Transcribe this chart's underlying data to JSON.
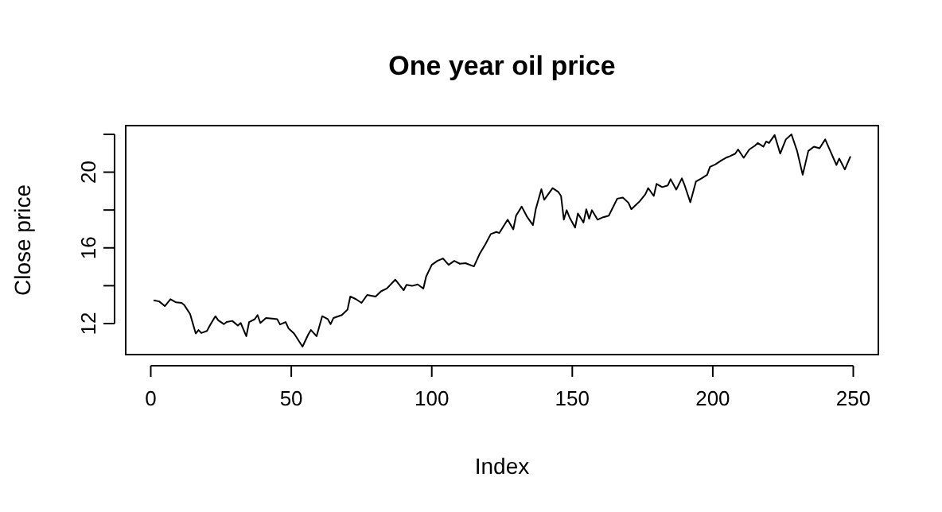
{
  "chart_data": {
    "type": "line",
    "title": "One year oil price",
    "xlabel": "Index",
    "ylabel": "Close price",
    "xlim": [
      -8.92,
      258.92
    ],
    "xticks": [
      0,
      50,
      100,
      150,
      200,
      250
    ],
    "ylim": [
      10.36,
      22.46
    ],
    "yticks": [
      12,
      {
        "value": 14,
        "label": null
      },
      16,
      {
        "value": 18,
        "label": null
      },
      20,
      {
        "value": 22,
        "label": null
      }
    ],
    "grid": false,
    "x": [
      1,
      3,
      5,
      7,
      9,
      11,
      12,
      14,
      16,
      17,
      18,
      20,
      21,
      23,
      24,
      26,
      27,
      29,
      31,
      32,
      34,
      35,
      37,
      38,
      39,
      41,
      44,
      45,
      46,
      48,
      49,
      51,
      54,
      56,
      57,
      59,
      61,
      63,
      64,
      65,
      68,
      70,
      71,
      73,
      75,
      77,
      80,
      82,
      84,
      87,
      90,
      91,
      93,
      95,
      97,
      98,
      100,
      102,
      104,
      106,
      108,
      110,
      112,
      115,
      117,
      119,
      121,
      123,
      124,
      127,
      129,
      130,
      132,
      134,
      136,
      137,
      139,
      140,
      143,
      145,
      146,
      147,
      148,
      149,
      151,
      152,
      154,
      155,
      156,
      157,
      159,
      161,
      163,
      166,
      168,
      170,
      171,
      174,
      176,
      177,
      179,
      180,
      182,
      184,
      185,
      187,
      189,
      190,
      192,
      194,
      196,
      198,
      199,
      201,
      203,
      205,
      206,
      208,
      209,
      211,
      213,
      215,
      216,
      218,
      219,
      220,
      222,
      224,
      226,
      228,
      230,
      232,
      234,
      236,
      238,
      240,
      242,
      244,
      245,
      247,
      249
    ],
    "series": [
      {
        "color": "#000000",
        "values": [
          13.23,
          13.17,
          12.92,
          13.29,
          13.12,
          13.09,
          12.96,
          12.5,
          11.47,
          11.66,
          11.5,
          11.61,
          11.89,
          12.39,
          12.17,
          11.97,
          12.08,
          12.14,
          11.89,
          12.03,
          11.33,
          12.08,
          12.23,
          12.45,
          12.03,
          12.29,
          12.25,
          12.23,
          11.95,
          12.08,
          11.75,
          11.47,
          10.78,
          11.41,
          11.66,
          11.33,
          12.39,
          12.23,
          11.97,
          12.29,
          12.45,
          12.73,
          13.43,
          13.29,
          13.09,
          13.51,
          13.43,
          13.71,
          13.85,
          14.32,
          13.76,
          14.05,
          13.99,
          14.07,
          13.85,
          14.49,
          15.1,
          15.31,
          15.44,
          15.1,
          15.31,
          15.16,
          15.19,
          15.02,
          15.67,
          16.17,
          16.73,
          16.84,
          16.78,
          17.49,
          16.98,
          17.7,
          18.18,
          17.62,
          17.2,
          18.04,
          19.1,
          18.54,
          19.16,
          18.96,
          18.74,
          17.49,
          17.99,
          17.62,
          17.07,
          17.82,
          17.34,
          18.04,
          17.54,
          17.99,
          17.49,
          17.62,
          17.7,
          18.6,
          18.66,
          18.38,
          18.04,
          18.46,
          18.83,
          19.16,
          18.74,
          19.38,
          19.21,
          19.3,
          19.63,
          19.08,
          19.67,
          19.3,
          18.41,
          19.5,
          19.67,
          19.86,
          20.28,
          20.42,
          20.62,
          20.78,
          20.84,
          20.98,
          21.2,
          20.76,
          21.2,
          21.4,
          21.54,
          21.35,
          21.62,
          21.54,
          21.96,
          20.98,
          21.73,
          22.0,
          21.12,
          19.86,
          21.12,
          21.35,
          21.26,
          21.73,
          21.06,
          20.38,
          20.72,
          20.14,
          20.84
        ]
      }
    ]
  }
}
